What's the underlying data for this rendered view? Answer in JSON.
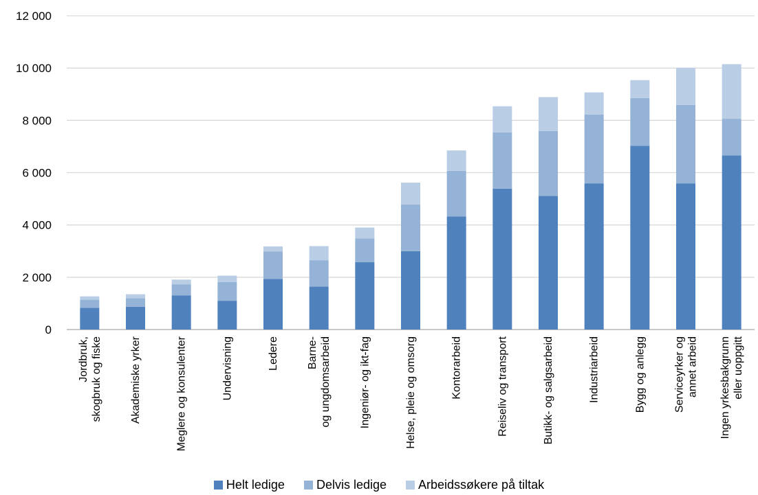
{
  "chart_data": {
    "type": "bar",
    "stacked": true,
    "categories": [
      "Jordbruk, skogbruk og fiske",
      "Akademiske yrker",
      "Meglere og konsulenter",
      "Undervisning",
      "Ledere",
      "Barne- og ungdomsarbeid",
      "Ingeniør- og ikt-fag",
      "Helse, pleie og omsorg",
      "Kontorarbeid",
      "Reiseliv og transport",
      "Butikk- og salgsarbeid",
      "Industriarbeid",
      "Bygg og anlegg",
      "Serviceyrker og annet arbeid",
      "Ingen yrkesbakgrunn eller uoppgitt"
    ],
    "category_lines": [
      [
        "Jordbruk,",
        "skogbruk og fiske"
      ],
      [
        "Akademiske yrker"
      ],
      [
        "Meglere og konsulenter"
      ],
      [
        "Undervisning"
      ],
      [
        "Ledere"
      ],
      [
        "Barne-",
        "og ungdomsarbeid"
      ],
      [
        "Ingeniør- og ikt-fag"
      ],
      [
        "Helse, pleie og omsorg"
      ],
      [
        "Kontorarbeid"
      ],
      [
        "Reiseliv og transport"
      ],
      [
        "Butikk- og salgsarbeid"
      ],
      [
        "Industriarbeid"
      ],
      [
        "Bygg og anlegg"
      ],
      [
        "Serviceyrker og",
        "annet arbeid"
      ],
      [
        "Ingen yrkesbakgrunn",
        "eller uoppgitt"
      ]
    ],
    "series": [
      {
        "name": "Helt ledige",
        "color": "#4f81bd",
        "values": [
          830,
          870,
          1300,
          1100,
          1930,
          1640,
          2580,
          3000,
          4320,
          5390,
          5110,
          5590,
          7030,
          5590,
          6660
        ]
      },
      {
        "name": "Delvis ledige",
        "color": "#95b3d7",
        "values": [
          310,
          330,
          430,
          720,
          1050,
          1010,
          900,
          1780,
          1750,
          2150,
          2480,
          2630,
          1820,
          3000,
          1400
        ]
      },
      {
        "name": "Arbeidssøkere på tiltak",
        "color": "#b9cde5",
        "values": [
          130,
          150,
          180,
          240,
          200,
          540,
          420,
          840,
          780,
          1000,
          1300,
          850,
          690,
          1420,
          2090
        ]
      }
    ],
    "ylim": [
      0,
      12000
    ],
    "yticks": [
      0,
      2000,
      4000,
      6000,
      8000,
      10000,
      12000
    ],
    "ytick_labels": [
      "0",
      "2 000",
      "4 000",
      "6 000",
      "8 000",
      "10 000",
      "12 000"
    ],
    "grid": true,
    "legend_position": "bottom",
    "title": "",
    "xlabel": "",
    "ylabel": ""
  }
}
